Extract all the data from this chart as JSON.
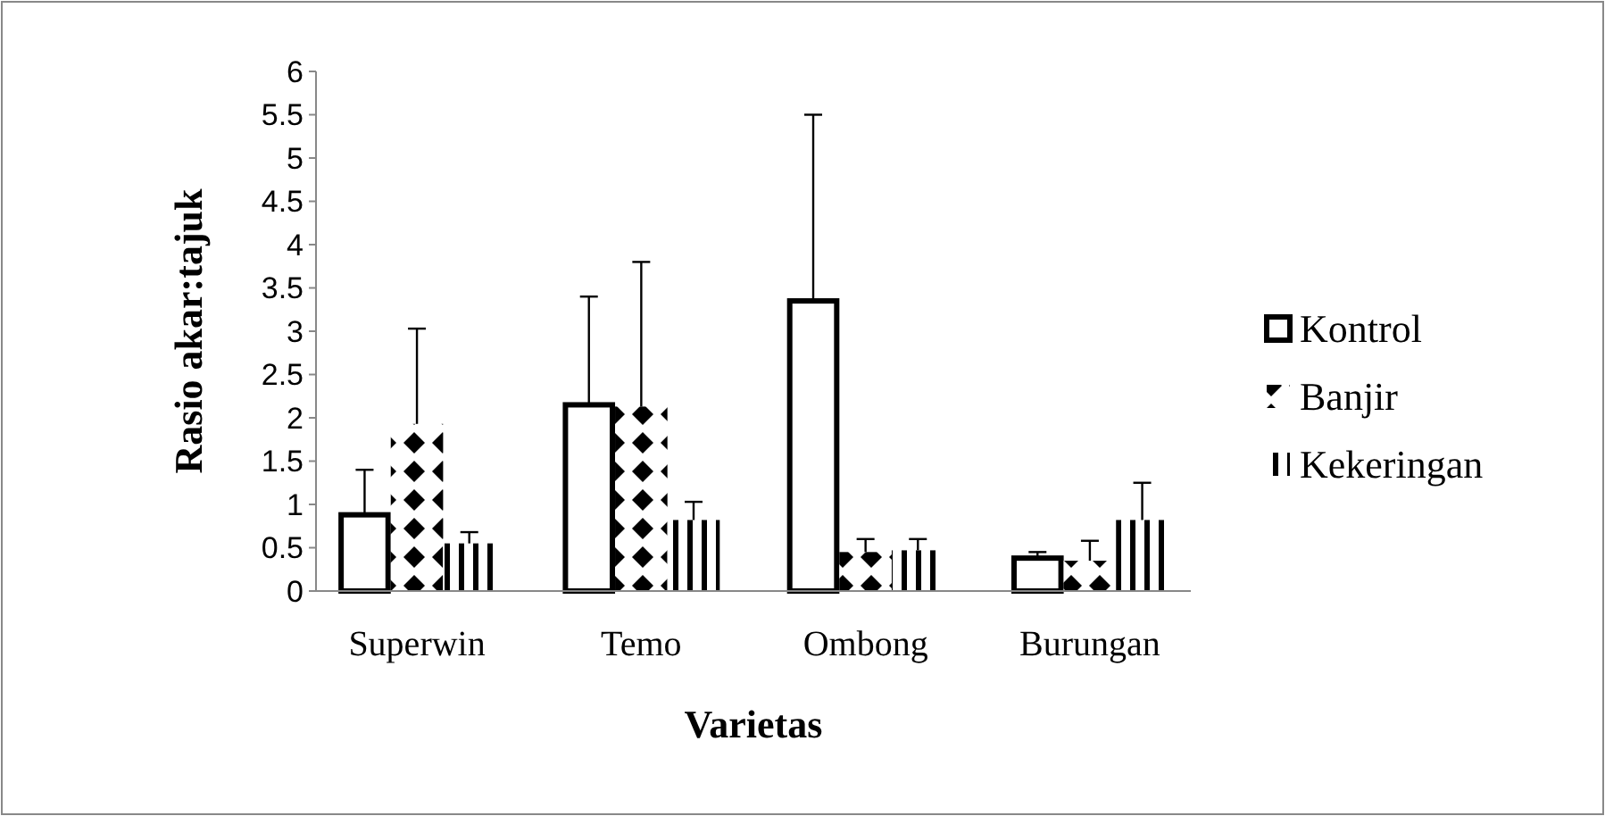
{
  "chart_data": {
    "type": "bar",
    "xlabel": "Varietas",
    "ylabel": "Rasio akar:tajuk",
    "categories": [
      "Superwin",
      "Temo",
      "Ombong",
      "Burungan"
    ],
    "series": [
      {
        "name": "Kontrol",
        "color": "#000000",
        "values": [
          0.88,
          2.15,
          3.35,
          0.38
        ],
        "errors": [
          [
            0.88,
            1.4
          ],
          [
            2.15,
            3.4
          ],
          [
            3.35,
            5.5
          ],
          [
            0.38,
            0.45
          ]
        ]
      },
      {
        "name": "Banjir",
        "color": "#000000",
        "values": [
          1.93,
          2.13,
          0.45,
          0.35
        ],
        "errors": [
          [
            1.93,
            3.03
          ],
          [
            2.13,
            3.8
          ],
          [
            0.45,
            0.6
          ],
          [
            0.35,
            0.58
          ]
        ]
      },
      {
        "name": "Kekeringan",
        "color": "#000000",
        "values": [
          0.55,
          0.82,
          0.47,
          0.82
        ],
        "errors": [
          [
            0.55,
            0.68
          ],
          [
            0.82,
            1.03
          ],
          [
            0.47,
            0.6
          ],
          [
            0.82,
            1.25
          ]
        ]
      }
    ],
    "ylim": [
      0,
      6
    ],
    "yticks": [
      0,
      0.5,
      1,
      1.5,
      2,
      2.5,
      3,
      3.5,
      4,
      4.5,
      5,
      5.5,
      6
    ],
    "grid": false,
    "legend": "right"
  }
}
